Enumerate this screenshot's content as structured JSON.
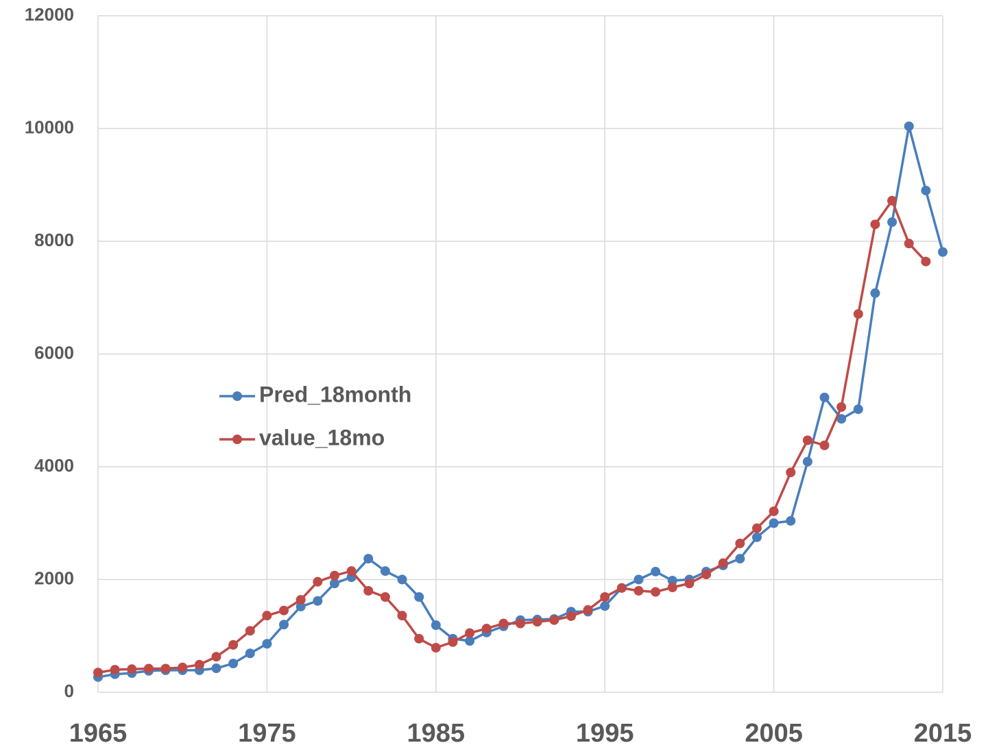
{
  "chart_data": {
    "type": "line",
    "x": [
      1965,
      1966,
      1967,
      1968,
      1969,
      1970,
      1971,
      1972,
      1973,
      1974,
      1975,
      1976,
      1977,
      1978,
      1979,
      1980,
      1981,
      1982,
      1983,
      1984,
      1985,
      1986,
      1987,
      1988,
      1989,
      1990,
      1991,
      1992,
      1993,
      1994,
      1995,
      1996,
      1997,
      1998,
      1999,
      2000,
      2001,
      2002,
      2003,
      2004,
      2005,
      2006,
      2007,
      2008,
      2009,
      2010,
      2011,
      2012,
      2013,
      2014,
      2015
    ],
    "series": [
      {
        "name": "Pred_18month",
        "color": "#4a7ebb",
        "values": [
          270,
          320,
          340,
          380,
          390,
          390,
          390,
          425,
          510,
          690,
          860,
          1200,
          1520,
          1620,
          1930,
          2040,
          2370,
          2150,
          2000,
          1690,
          1190,
          950,
          910,
          1060,
          1170,
          1280,
          1290,
          1300,
          1430,
          1430,
          1530,
          1850,
          2000,
          2140,
          1980,
          2000,
          2140,
          2250,
          2370,
          2750,
          3000,
          3040,
          4090,
          5230,
          4850,
          5020,
          7080,
          8340,
          10040,
          8900,
          7810
        ]
      },
      {
        "name": "value_18mo",
        "color": "#be4b48",
        "values": [
          350,
          400,
          410,
          420,
          420,
          440,
          490,
          630,
          840,
          1090,
          1360,
          1450,
          1640,
          1960,
          2070,
          2150,
          1800,
          1690,
          1360,
          950,
          790,
          890,
          1050,
          1130,
          1220,
          1220,
          1250,
          1280,
          1350,
          1460,
          1690,
          1850,
          1800,
          1780,
          1860,
          1930,
          2090,
          2290,
          2640,
          2910,
          3210,
          3900,
          4470,
          4380,
          5060,
          6710,
          8300,
          8720,
          7960,
          7640,
          null
        ]
      }
    ],
    "xlim": [
      1965,
      2015
    ],
    "xticks": [
      1965,
      1975,
      1985,
      1995,
      2005,
      2015
    ],
    "ylim": [
      0,
      12000
    ],
    "yticks": [
      0,
      2000,
      4000,
      6000,
      8000,
      10000,
      12000
    ],
    "grid": true,
    "legend": "center-left"
  }
}
